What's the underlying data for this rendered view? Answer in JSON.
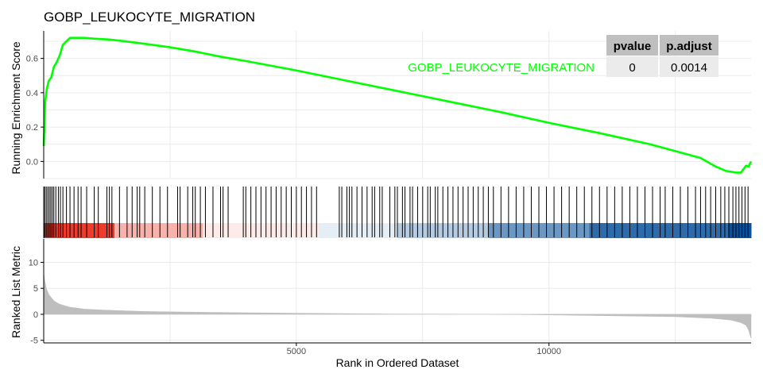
{
  "chart_data": {
    "type": "line",
    "title": "GOBP_LEUKOCYTE_MIGRATION",
    "xlabel": "Rank in Ordered Dataset",
    "xlim": [
      0,
      14000
    ],
    "x_ticks": [
      5000,
      10000
    ],
    "x_tick_labels": [
      "5000",
      "10000"
    ],
    "colors": {
      "curve": "#00ff00",
      "hits": "#000000",
      "metric_fill": "#bebebe",
      "table_header": "#bfbfbf",
      "table_cell": "#ebebeb",
      "heat_positive": "#ef3b2c",
      "heat_negative": "#08519c"
    },
    "enrichment_panel": {
      "ylabel": "Running Enrichment Score",
      "ylim": [
        -0.1,
        0.76
      ],
      "y_ticks": [
        0.0,
        0.2,
        0.4,
        0.6
      ],
      "y_tick_labels": [
        "0.0",
        "0.2",
        "0.4",
        "0.6"
      ],
      "series": [
        {
          "name": "GOBP_LEUKOCYTE_MIGRATION",
          "x": [
            0,
            30,
            60,
            100,
            150,
            200,
            260,
            320,
            380,
            450,
            520,
            600,
            700,
            800,
            1000,
            1300,
            1600,
            2000,
            2500,
            3000,
            3500,
            4000,
            5000,
            6000,
            7000,
            8000,
            9000,
            10000,
            11000,
            12000,
            12500,
            13000,
            13300,
            13500,
            13600,
            13700,
            13800,
            13900,
            13950,
            14000
          ],
          "y": [
            0.09,
            0.35,
            0.42,
            0.47,
            0.49,
            0.55,
            0.58,
            0.62,
            0.68,
            0.7,
            0.72,
            0.72,
            0.72,
            0.72,
            0.715,
            0.71,
            0.7,
            0.685,
            0.665,
            0.64,
            0.61,
            0.585,
            0.53,
            0.47,
            0.41,
            0.35,
            0.29,
            0.225,
            0.165,
            0.1,
            0.06,
            0.02,
            -0.03,
            -0.055,
            -0.06,
            -0.065,
            -0.065,
            -0.025,
            -0.03,
            0.0
          ]
        }
      ],
      "legend": {
        "label": "GOBP_LEUKOCYTE_MIGRATION",
        "placement": "top-right",
        "table": {
          "headers": [
            "pvalue",
            "p.adjust"
          ],
          "values": [
            "0",
            "0.0014"
          ]
        }
      }
    },
    "hit_positions": [
      20,
      50,
      80,
      110,
      140,
      170,
      200,
      240,
      290,
      330,
      380,
      450,
      520,
      600,
      680,
      740,
      850,
      1000,
      1080,
      1250,
      1300,
      1350,
      1500,
      1650,
      1750,
      1850,
      1900,
      2000,
      2150,
      2300,
      2450,
      2650,
      2700,
      2850,
      2950,
      3000,
      3100,
      3200,
      3350,
      3500,
      3550,
      3650,
      3950,
      4000,
      4100,
      4200,
      4300,
      4400,
      4500,
      4600,
      4700,
      4800,
      4900,
      5000,
      5100,
      5200,
      5300,
      5400,
      5850,
      5900,
      6000,
      6050,
      6100,
      6200,
      6300,
      6400,
      6500,
      6550,
      6650,
      6700,
      6850,
      6950,
      7000,
      7100,
      7150,
      7250,
      7300,
      7400,
      7500,
      7600,
      7650,
      7750,
      7800,
      7900,
      8000,
      8100,
      8200,
      8300,
      8400,
      8500,
      8600,
      8700,
      8800,
      8900,
      9050,
      9200,
      9350,
      9500,
      9650,
      9800,
      9950,
      10100,
      10250,
      10400,
      10550,
      10700,
      10850,
      11000,
      11150,
      11300,
      11450,
      11600,
      11750,
      11900,
      12050,
      12200,
      12300,
      12450,
      12600,
      12750,
      12900,
      13000,
      13100,
      13200,
      13300,
      13400,
      13480,
      13560,
      13640,
      13700,
      13760,
      13820,
      13880,
      13940
    ],
    "heat_bands": [
      {
        "start": 0,
        "end": 1400,
        "value": 1.0
      },
      {
        "start": 1400,
        "end": 3150,
        "value": 0.4
      },
      {
        "start": 3150,
        "end": 5450,
        "value": 0.1
      },
      {
        "start": 5450,
        "end": 7000,
        "value": -0.1
      },
      {
        "start": 7000,
        "end": 8800,
        "value": -0.3
      },
      {
        "start": 8800,
        "end": 10800,
        "value": -0.6
      },
      {
        "start": 10800,
        "end": 13550,
        "value": -0.85
      },
      {
        "start": 13550,
        "end": 14000,
        "value": -1.0
      }
    ],
    "metric_panel": {
      "ylabel": "Ranked List Metric",
      "ylim": [
        -5.5,
        14.5
      ],
      "y_ticks": [
        -5,
        0,
        5,
        10
      ],
      "y_tick_labels": [
        "-5",
        "0",
        "5",
        "10"
      ],
      "x": [
        0,
        20,
        50,
        100,
        200,
        300,
        500,
        800,
        1200,
        2000,
        3000,
        5000,
        7000,
        8800,
        9600,
        11000,
        12500,
        13200,
        13600,
        13800,
        13900,
        13950,
        14000
      ],
      "y": [
        8.0,
        6.5,
        5.0,
        3.8,
        2.6,
        2.0,
        1.4,
        1.0,
        0.8,
        0.55,
        0.4,
        0.2,
        0.05,
        0.0,
        -0.05,
        -0.25,
        -0.45,
        -0.75,
        -1.1,
        -1.6,
        -2.1,
        -3.0,
        -4.6
      ]
    }
  }
}
